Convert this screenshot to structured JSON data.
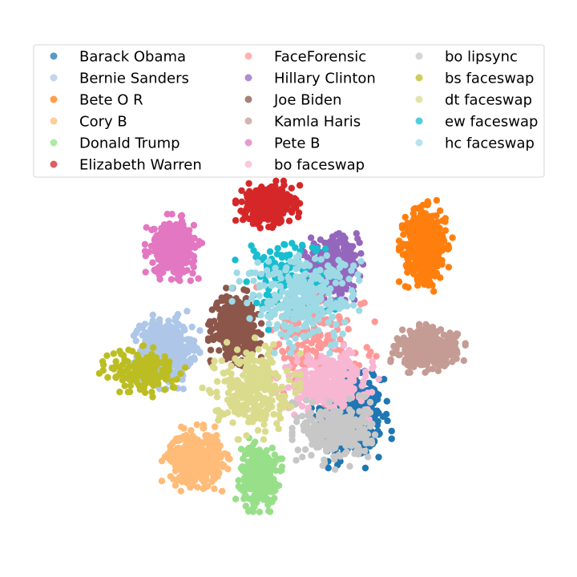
{
  "chart_data": {
    "type": "scatter",
    "title": "",
    "xlabel": "",
    "ylabel": "",
    "axes_visible": false,
    "grid": false,
    "legend_position": "top",
    "legend_columns": 3,
    "series": [
      {
        "name": "Barack Obama",
        "color": "#1f77b4",
        "center": [
          8.5,
          -7.5
        ],
        "spread": [
          4.5,
          5.5
        ],
        "n": 500
      },
      {
        "name": "Bernie Sanders",
        "color": "#aec7e8",
        "center": [
          -16.5,
          1.2
        ],
        "spread": [
          3.8,
          4.2
        ],
        "n": 450
      },
      {
        "name": "Bete O R",
        "color": "#ff7f0e",
        "center": [
          18.5,
          14.8
        ],
        "spread": [
          3.0,
          5.0
        ],
        "n": 450
      },
      {
        "name": "Cory B",
        "color": "#ffbb78",
        "center": [
          -12.5,
          -12.8
        ],
        "spread": [
          3.8,
          3.6
        ],
        "n": 450
      },
      {
        "name": "Donald Trump",
        "color": "#98df8a",
        "center": [
          -4.0,
          -15.0
        ],
        "spread": [
          2.6,
          4.0
        ],
        "n": 350
      },
      {
        "name": "Elizabeth Warren",
        "color": "#d62728",
        "center": [
          -2.8,
          20.0
        ],
        "spread": [
          3.6,
          2.6
        ],
        "n": 350
      },
      {
        "name": "FaceForensic",
        "color": "#ff9896",
        "center": [
          3.0,
          3.0
        ],
        "spread": [
          8.0,
          8.0
        ],
        "n": 180
      },
      {
        "name": "Hillary Clinton",
        "color": "#9467bd",
        "center": [
          6.2,
          12.0
        ],
        "spread": [
          3.6,
          3.6
        ],
        "n": 400
      },
      {
        "name": "Joe Biden",
        "color": "#8c564b",
        "center": [
          -7.2,
          4.2
        ],
        "spread": [
          3.0,
          4.2
        ],
        "n": 380
      },
      {
        "name": "Kamla Haris",
        "color": "#c49c94",
        "center": [
          18.8,
          1.4
        ],
        "spread": [
          4.2,
          2.6
        ],
        "n": 420
      },
      {
        "name": "Pete B",
        "color": "#e377c2",
        "center": [
          -15.5,
          14.5
        ],
        "spread": [
          3.2,
          3.6
        ],
        "n": 400
      },
      {
        "name": "bo faceswap",
        "color": "#f7b6d2",
        "center": [
          5.5,
          -3.0
        ],
        "spread": [
          6.0,
          4.0
        ],
        "n": 320
      },
      {
        "name": "bo lipsync",
        "color": "#c7c7c7",
        "center": [
          6.5,
          -9.5
        ],
        "spread": [
          5.0,
          4.0
        ],
        "n": 300
      },
      {
        "name": "bs faceswap",
        "color": "#bcbd22",
        "center": [
          -19.5,
          -1.5
        ],
        "spread": [
          5.0,
          3.2
        ],
        "n": 170
      },
      {
        "name": "dt faceswap",
        "color": "#dbdb8d",
        "center": [
          -5.0,
          -3.8
        ],
        "spread": [
          5.5,
          5.5
        ],
        "n": 260
      },
      {
        "name": "ew faceswap",
        "color": "#17becf",
        "center": [
          -0.5,
          11.0
        ],
        "spread": [
          7.0,
          6.0
        ],
        "n": 120
      },
      {
        "name": "hc faceswap",
        "color": "#9edae5",
        "center": [
          2.0,
          8.0
        ],
        "spread": [
          8.0,
          6.0
        ],
        "n": 300
      }
    ],
    "xlim": [
      -27,
      27
    ],
    "ylim": [
      -22,
      31
    ]
  }
}
